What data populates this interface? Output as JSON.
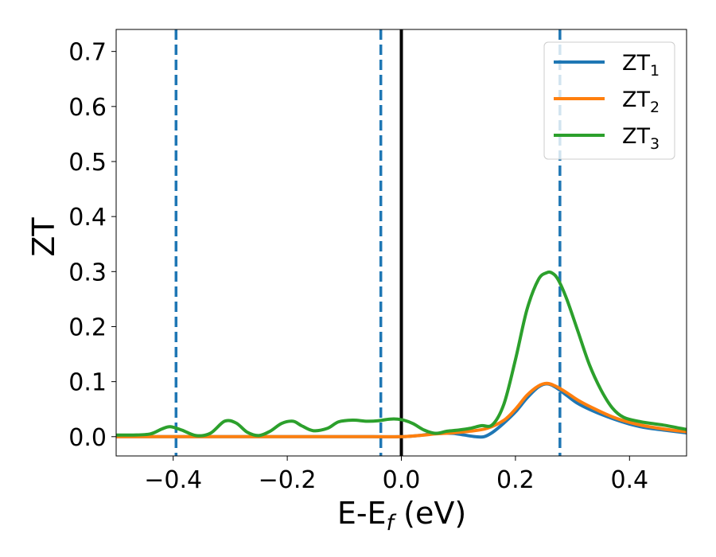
{
  "chart_data": {
    "type": "line",
    "xlabel": "E-E",
    "xlabel_sub": "f",
    "xlabel_unit": " (eV)",
    "ylabel": "ZT",
    "xlim": [
      -0.5,
      0.5
    ],
    "ylim": [
      -0.035,
      0.74
    ],
    "xticks": [
      -0.4,
      -0.2,
      0.0,
      0.2,
      0.4
    ],
    "xtick_labels": [
      "−0.4",
      "−0.2",
      "0.0",
      "0.2",
      "0.4"
    ],
    "yticks": [
      0.0,
      0.1,
      0.2,
      0.3,
      0.4,
      0.5,
      0.6,
      0.7
    ],
    "ytick_labels": [
      "0.0",
      "0.1",
      "0.2",
      "0.3",
      "0.4",
      "0.5",
      "0.6",
      "0.7"
    ],
    "grid": false,
    "legend_position": "top-right",
    "vertical_lines": [
      {
        "x": -0.395,
        "style": "dashed",
        "color": "#1f77b4"
      },
      {
        "x": -0.036,
        "style": "dashed",
        "color": "#1f77b4"
      },
      {
        "x": 0.0,
        "style": "solid",
        "color": "#000000"
      },
      {
        "x": 0.278,
        "style": "dashed",
        "color": "#1f77b4"
      }
    ],
    "series": [
      {
        "name": "ZT",
        "sub": "1",
        "color": "#1f77b4",
        "x": [
          -0.5,
          -0.4,
          -0.3,
          -0.2,
          -0.1,
          -0.05,
          0.0,
          0.03,
          0.06,
          0.09,
          0.11,
          0.13,
          0.145,
          0.16,
          0.18,
          0.2,
          0.22,
          0.24,
          0.255,
          0.27,
          0.29,
          0.31,
          0.34,
          0.37,
          0.4,
          0.43,
          0.46,
          0.5
        ],
        "y": [
          0.0,
          0.0,
          0.0,
          0.0,
          0.0,
          0.0,
          0.0,
          0.002,
          0.006,
          0.006,
          0.003,
          0.0,
          0.0,
          0.008,
          0.025,
          0.045,
          0.07,
          0.09,
          0.096,
          0.09,
          0.075,
          0.06,
          0.045,
          0.033,
          0.023,
          0.016,
          0.012,
          0.007
        ]
      },
      {
        "name": "ZT",
        "sub": "2",
        "color": "#ff7f0e",
        "x": [
          -0.5,
          -0.4,
          -0.3,
          -0.2,
          -0.1,
          -0.05,
          0.0,
          0.03,
          0.06,
          0.09,
          0.12,
          0.15,
          0.18,
          0.2,
          0.22,
          0.24,
          0.255,
          0.27,
          0.29,
          0.31,
          0.34,
          0.37,
          0.4,
          0.43,
          0.46,
          0.5
        ],
        "y": [
          0.0,
          0.0,
          0.0,
          0.0,
          0.0,
          0.0,
          0.0,
          0.002,
          0.005,
          0.007,
          0.01,
          0.015,
          0.03,
          0.05,
          0.075,
          0.092,
          0.097,
          0.092,
          0.08,
          0.066,
          0.05,
          0.036,
          0.026,
          0.019,
          0.014,
          0.009
        ]
      },
      {
        "name": "ZT",
        "sub": "3",
        "color": "#2ca02c",
        "x": [
          -0.5,
          -0.47,
          -0.44,
          -0.42,
          -0.405,
          -0.385,
          -0.36,
          -0.335,
          -0.31,
          -0.29,
          -0.27,
          -0.25,
          -0.23,
          -0.21,
          -0.19,
          -0.175,
          -0.155,
          -0.13,
          -0.11,
          -0.085,
          -0.06,
          -0.04,
          -0.02,
          0.0,
          0.02,
          0.04,
          0.06,
          0.08,
          0.1,
          0.12,
          0.14,
          0.16,
          0.18,
          0.2,
          0.22,
          0.24,
          0.255,
          0.265,
          0.275,
          0.29,
          0.31,
          0.33,
          0.35,
          0.37,
          0.39,
          0.42,
          0.46,
          0.5
        ],
        "y": [
          0.003,
          0.003,
          0.005,
          0.014,
          0.018,
          0.012,
          0.002,
          0.006,
          0.028,
          0.025,
          0.008,
          0.002,
          0.01,
          0.024,
          0.028,
          0.02,
          0.011,
          0.015,
          0.027,
          0.03,
          0.028,
          0.029,
          0.032,
          0.031,
          0.024,
          0.012,
          0.006,
          0.01,
          0.012,
          0.015,
          0.02,
          0.022,
          0.06,
          0.14,
          0.23,
          0.285,
          0.298,
          0.297,
          0.285,
          0.25,
          0.19,
          0.13,
          0.085,
          0.052,
          0.035,
          0.027,
          0.021,
          0.013
        ]
      }
    ]
  }
}
